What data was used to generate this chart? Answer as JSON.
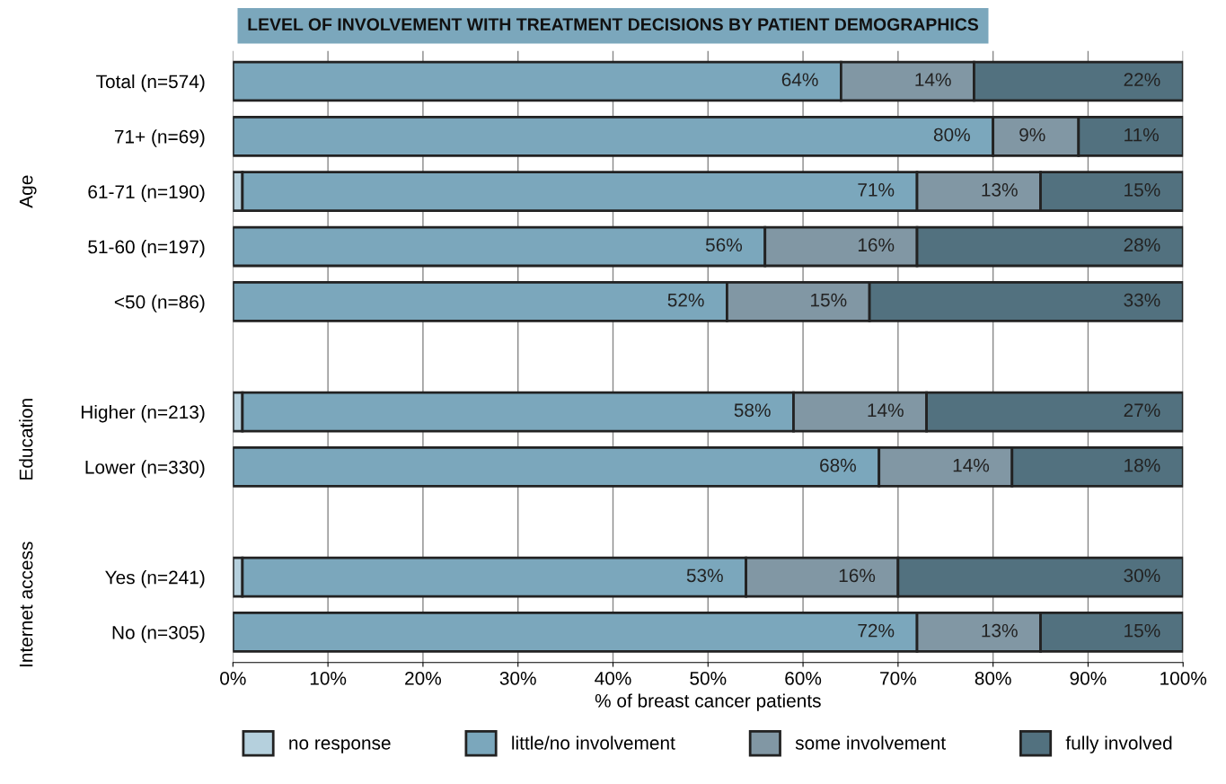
{
  "chart_data": {
    "type": "bar",
    "orientation": "horizontal",
    "stacked": true,
    "title": "LEVEL OF INVOLVEMENT WITH TREATMENT DECISIONS BY PATIENT DEMOGRAPHICS",
    "xlabel": "% of breast cancer patients",
    "categories": [
      "Total (n=574)",
      "71+ (n=69)",
      "61-71 (n=190)",
      "51-60 (n=197)",
      "<50 (n=86)",
      null,
      "Higher (n=213)",
      "Lower (n=330)",
      null,
      "Yes (n=241)",
      "No (n=305)"
    ],
    "series": [
      {
        "name": "no response",
        "color": "#b5d0dd",
        "values": [
          0,
          0,
          1,
          0,
          0,
          null,
          1,
          0,
          null,
          1,
          0
        ],
        "value_labels": [
          null,
          null,
          null,
          null,
          null,
          null,
          null,
          null,
          null,
          null,
          null
        ]
      },
      {
        "name": "little/no involvement",
        "color": "#7ba7bc",
        "values": [
          64,
          80,
          71,
          56,
          52,
          null,
          58,
          68,
          null,
          53,
          72
        ],
        "value_labels": [
          "64%",
          "80%",
          "71%",
          "56%",
          "52%",
          null,
          "58%",
          "68%",
          null,
          "53%",
          "72%"
        ]
      },
      {
        "name": "some involvement",
        "color": "#8197a4",
        "values": [
          14,
          9,
          13,
          16,
          15,
          null,
          14,
          14,
          null,
          16,
          13
        ],
        "value_labels": [
          "14%",
          "9%",
          "13%",
          "16%",
          "15%",
          null,
          "14%",
          "14%",
          null,
          "16%",
          "13%"
        ]
      },
      {
        "name": "fully involved",
        "color": "#52717f",
        "values": [
          22,
          11,
          15,
          28,
          33,
          null,
          27,
          18,
          null,
          30,
          15
        ],
        "value_labels": [
          "22%",
          "11%",
          "15%",
          "28%",
          "33%",
          null,
          "27%",
          "18%",
          null,
          "30%",
          "15%"
        ]
      }
    ],
    "xlim": [
      0,
      100
    ],
    "xticks": [
      {
        "value": 0,
        "label": "0%"
      },
      {
        "value": 10,
        "label": "10%"
      },
      {
        "value": 20,
        "label": "20%"
      },
      {
        "value": 30,
        "label": "30%"
      },
      {
        "value": 40,
        "label": "40%"
      },
      {
        "value": 50,
        "label": "50%"
      },
      {
        "value": 60,
        "label": "60%"
      },
      {
        "value": 70,
        "label": "70%"
      },
      {
        "value": 80,
        "label": "80%"
      },
      {
        "value": 90,
        "label": "90%"
      },
      {
        "value": 100,
        "label": "100%"
      }
    ],
    "grid": "x",
    "legend": "bottom",
    "annotations": [
      "Age",
      "Education",
      "Internet access"
    ]
  }
}
